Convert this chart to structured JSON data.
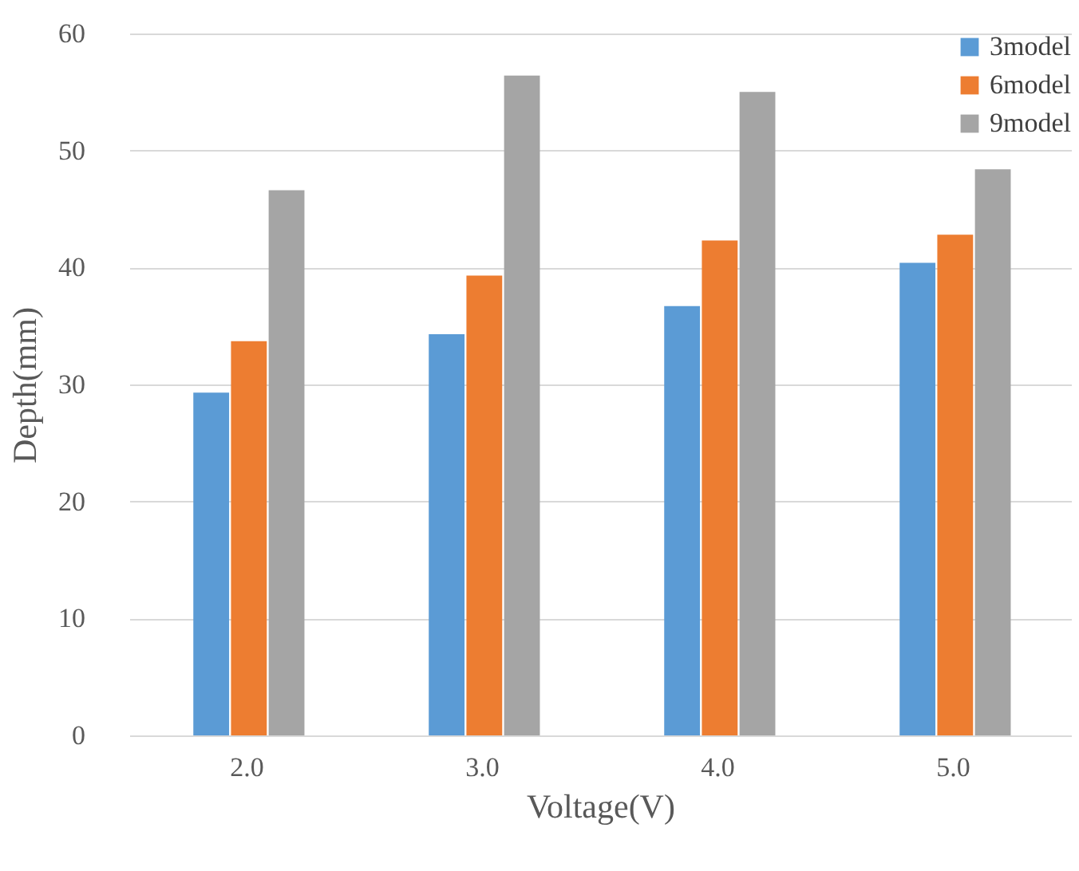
{
  "chart_data": {
    "type": "bar",
    "xlabel": "Voltage(V)",
    "ylabel": "Depth(mm)",
    "categories": [
      "2.0",
      "3.0",
      "4.0",
      "5.0"
    ],
    "series": [
      {
        "name": "3model",
        "color": "#5b9bd5",
        "values": [
          29.3,
          34.3,
          36.7,
          40.4
        ]
      },
      {
        "name": "6model",
        "color": "#ed7d31",
        "values": [
          33.7,
          39.3,
          42.3,
          42.8
        ]
      },
      {
        "name": "9model",
        "color": "#a5a5a5",
        "values": [
          46.6,
          56.4,
          55.0,
          48.4
        ]
      }
    ],
    "ylim": [
      0,
      60
    ],
    "yticks": [
      0,
      10,
      20,
      30,
      40,
      50,
      60
    ],
    "grid": "y",
    "legend": "top right"
  }
}
